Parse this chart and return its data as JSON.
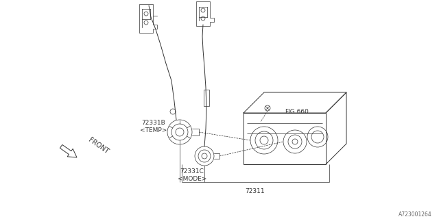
{
  "bg_color": "#ffffff",
  "line_color": "#333333",
  "label_72331B": "72331B\n<TEMP>",
  "label_72331C": "72331C\n<MODE>",
  "label_72311": "72311",
  "label_fig660": "FIG.660",
  "label_front": "FRONT",
  "part_number": "A723001264",
  "figsize": [
    6.4,
    3.2
  ],
  "dpi": 100,
  "lw_main": 0.7,
  "lw_thin": 0.5,
  "font_size": 6.5
}
